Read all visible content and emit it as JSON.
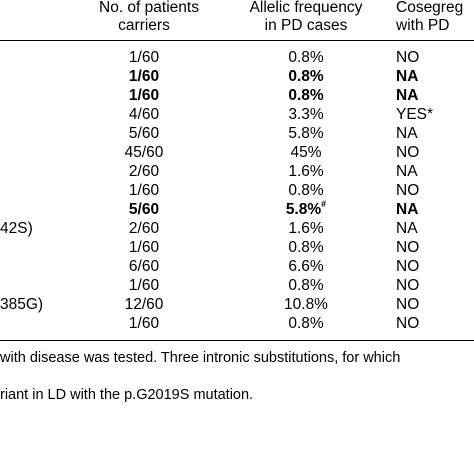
{
  "header": {
    "carriers_line1": "No. of patients",
    "carriers_line2": "carriers",
    "freq_line1": "Allelic frequency",
    "freq_line2": "in PD cases",
    "coseg_line1": "Cosegreg",
    "coseg_line2": "with PD"
  },
  "left_fragments": {
    "frag_row9": "42S)",
    "frag_row13": "385G)"
  },
  "rows": [
    {
      "carriers": "1/60",
      "freq": "0.8%",
      "coseg": "NO",
      "bold": false
    },
    {
      "carriers": "1/60",
      "freq": "0.8%",
      "coseg": "NA",
      "bold": true
    },
    {
      "carriers": "1/60",
      "freq": "0.8%",
      "coseg": "NA",
      "bold": true
    },
    {
      "carriers": "4/60",
      "freq": "3.3%",
      "coseg": "YES*",
      "bold": false
    },
    {
      "carriers": "5/60",
      "freq": "5.8%",
      "coseg": "NA",
      "bold": false
    },
    {
      "carriers": "45/60",
      "freq": "45%",
      "coseg": "NO",
      "bold": false
    },
    {
      "carriers": "2/60",
      "freq": "1.6%",
      "coseg": "NA",
      "bold": false
    },
    {
      "carriers": "1/60",
      "freq": "0.8%",
      "coseg": "NO",
      "bold": false
    },
    {
      "carriers": "5/60",
      "freq": "5.8%",
      "freq_sup": "#",
      "coseg": "NA",
      "bold": true
    },
    {
      "carriers": "2/60",
      "freq": "1.6%",
      "coseg": "NA",
      "bold": false
    },
    {
      "carriers": "1/60",
      "freq": "0.8%",
      "coseg": "NO",
      "bold": false
    },
    {
      "carriers": "6/60",
      "freq": "6.6%",
      "coseg": "NO",
      "bold": false
    },
    {
      "carriers": "1/60",
      "freq": "0.8%",
      "coseg": "NO",
      "bold": false
    },
    {
      "carriers": "12/60",
      "freq": "10.8%",
      "coseg": "NO",
      "bold": false
    },
    {
      "carriers": "1/60",
      "freq": "0.8%",
      "coseg": "NO",
      "bold": false
    }
  ],
  "footnotes": {
    "line1": "with disease was tested. Three intronic substitutions, for which",
    "line2": "riant in LD with the p.G2019S mutation."
  }
}
